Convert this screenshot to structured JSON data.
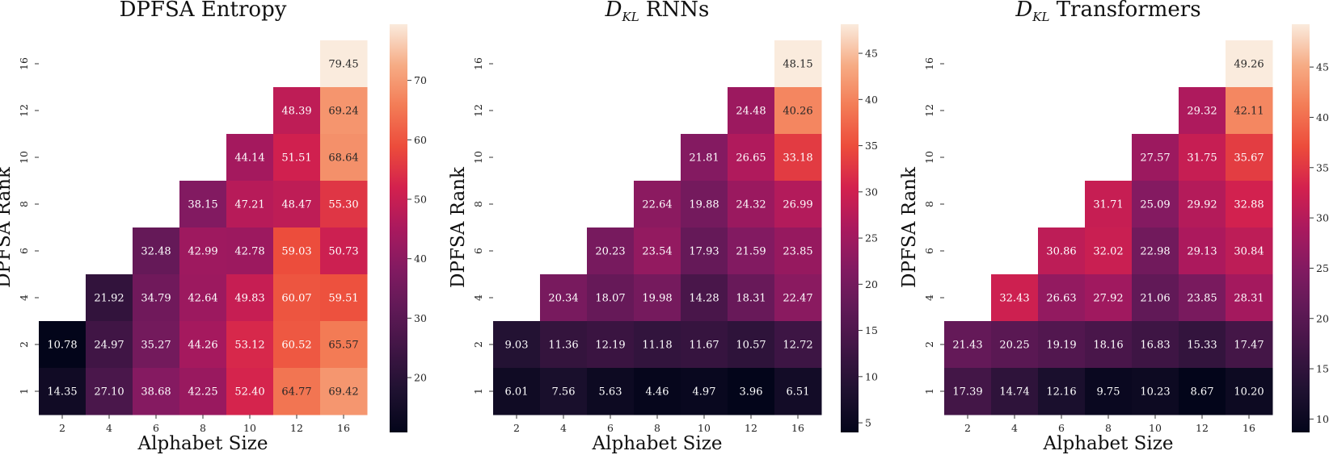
{
  "chart_data": [
    {
      "type": "heatmap",
      "title_main": "DPFSA Entropy",
      "title_sub": "",
      "xlabel": "Alphabet Size",
      "ylabel": "DPFSA Rank",
      "x_categories": [
        "2",
        "4",
        "6",
        "8",
        "10",
        "12",
        "16"
      ],
      "y_categories": [
        "16",
        "12",
        "10",
        "8",
        "6",
        "4",
        "2",
        "1"
      ],
      "values": [
        [
          null,
          null,
          null,
          null,
          null,
          null,
          79.45
        ],
        [
          null,
          null,
          null,
          null,
          null,
          48.39,
          69.24
        ],
        [
          null,
          null,
          null,
          null,
          44.14,
          51.51,
          68.64
        ],
        [
          null,
          null,
          null,
          38.15,
          47.21,
          48.47,
          55.3
        ],
        [
          null,
          null,
          32.48,
          42.99,
          42.78,
          59.03,
          50.73
        ],
        [
          null,
          21.92,
          34.79,
          42.64,
          49.83,
          60.07,
          59.51
        ],
        [
          10.78,
          24.97,
          35.27,
          44.26,
          53.12,
          60.52,
          65.57
        ],
        [
          14.35,
          27.1,
          38.68,
          42.25,
          52.4,
          64.77,
          69.42
        ]
      ],
      "labels": [
        [
          "",
          "",
          "",
          "",
          "",
          "",
          "79.45"
        ],
        [
          "",
          "",
          "",
          "",
          "",
          "48.39",
          "69.24"
        ],
        [
          "",
          "",
          "",
          "",
          "44.14",
          "51.51",
          "68.64"
        ],
        [
          "",
          "",
          "",
          "38.15",
          "47.21",
          "48.47",
          "55.30"
        ],
        [
          "",
          "",
          "32.48",
          "42.99",
          "42.78",
          "59.03",
          "50.73"
        ],
        [
          "",
          "21.92",
          "34.79",
          "42.64",
          "49.83",
          "60.07",
          "59.51"
        ],
        [
          "10.78",
          "24.97",
          "35.27",
          "44.26",
          "53.12",
          "60.52",
          "65.57"
        ],
        [
          "14.35",
          "27.10",
          "38.68",
          "42.25",
          "52.40",
          "64.77",
          "69.42"
        ]
      ],
      "vmin": 10.78,
      "vmax": 79.45,
      "colorbar_ticks": [
        20,
        30,
        40,
        50,
        60,
        70
      ],
      "colormap": "rocket"
    },
    {
      "type": "heatmap",
      "title_main": "D",
      "title_sub": "KL",
      "title_rest": " RNNs",
      "xlabel": "Alphabet Size",
      "ylabel": "DPFSA Rank",
      "x_categories": [
        "2",
        "4",
        "6",
        "8",
        "10",
        "12",
        "16"
      ],
      "y_categories": [
        "16",
        "12",
        "10",
        "8",
        "6",
        "4",
        "2",
        "1"
      ],
      "values": [
        [
          null,
          null,
          null,
          null,
          null,
          null,
          48.15
        ],
        [
          null,
          null,
          null,
          null,
          null,
          24.48,
          40.26
        ],
        [
          null,
          null,
          null,
          null,
          21.81,
          26.65,
          33.18
        ],
        [
          null,
          null,
          null,
          22.64,
          19.88,
          24.32,
          26.99
        ],
        [
          null,
          null,
          20.23,
          23.54,
          17.93,
          21.59,
          23.85
        ],
        [
          null,
          20.34,
          18.07,
          19.98,
          14.28,
          18.31,
          22.47
        ],
        [
          9.03,
          11.36,
          12.19,
          11.18,
          11.67,
          10.57,
          12.72
        ],
        [
          6.01,
          7.56,
          5.63,
          4.46,
          4.97,
          3.96,
          6.51
        ]
      ],
      "labels": [
        [
          "",
          "",
          "",
          "",
          "",
          "",
          "48.15"
        ],
        [
          "",
          "",
          "",
          "",
          "",
          "24.48",
          "40.26"
        ],
        [
          "",
          "",
          "",
          "",
          "21.81",
          "26.65",
          "33.18"
        ],
        [
          "",
          "",
          "",
          "22.64",
          "19.88",
          "24.32",
          "26.99"
        ],
        [
          "",
          "",
          "20.23",
          "23.54",
          "17.93",
          "21.59",
          "23.85"
        ],
        [
          "",
          "20.34",
          "18.07",
          "19.98",
          "14.28",
          "18.31",
          "22.47"
        ],
        [
          "9.03",
          "11.36",
          "12.19",
          "11.18",
          "11.67",
          "10.57",
          "12.72"
        ],
        [
          "6.01",
          "7.56",
          "5.63",
          "4.46",
          "4.97",
          "3.96",
          "6.51"
        ]
      ],
      "vmin": 3.96,
      "vmax": 48.15,
      "colorbar_ticks": [
        5,
        10,
        15,
        20,
        25,
        30,
        35,
        40,
        45
      ],
      "colormap": "rocket"
    },
    {
      "type": "heatmap",
      "title_main": "D",
      "title_sub": "KL",
      "title_rest": " Transformers",
      "xlabel": "Alphabet Size",
      "ylabel": "DPFSA Rank",
      "x_categories": [
        "2",
        "4",
        "6",
        "8",
        "10",
        "12",
        "16"
      ],
      "y_categories": [
        "16",
        "12",
        "10",
        "8",
        "6",
        "4",
        "2",
        "1"
      ],
      "values": [
        [
          null,
          null,
          null,
          null,
          null,
          null,
          49.26
        ],
        [
          null,
          null,
          null,
          null,
          null,
          29.32,
          42.11
        ],
        [
          null,
          null,
          null,
          null,
          27.57,
          31.75,
          35.67
        ],
        [
          null,
          null,
          null,
          31.71,
          25.09,
          29.92,
          32.88
        ],
        [
          null,
          null,
          30.86,
          32.02,
          22.98,
          29.13,
          30.84
        ],
        [
          null,
          32.43,
          26.63,
          27.92,
          21.06,
          23.85,
          28.31
        ],
        [
          21.43,
          20.25,
          19.19,
          18.16,
          16.83,
          15.33,
          17.47
        ],
        [
          17.39,
          14.74,
          12.16,
          9.75,
          10.23,
          8.67,
          10.2
        ]
      ],
      "labels": [
        [
          "",
          "",
          "",
          "",
          "",
          "",
          "49.26"
        ],
        [
          "",
          "",
          "",
          "",
          "",
          "29.32",
          "42.11"
        ],
        [
          "",
          "",
          "",
          "",
          "27.57",
          "31.75",
          "35.67"
        ],
        [
          "",
          "",
          "",
          "31.71",
          "25.09",
          "29.92",
          "32.88"
        ],
        [
          "",
          "",
          "30.86",
          "32.02",
          "22.98",
          "29.13",
          "30.84"
        ],
        [
          "",
          "32.43",
          "26.63",
          "27.92",
          "21.06",
          "23.85",
          "28.31"
        ],
        [
          "21.43",
          "20.25",
          "19.19",
          "18.16",
          "16.83",
          "15.33",
          "17.47"
        ],
        [
          "17.39",
          "14.74",
          "12.16",
          "9.75",
          "10.23",
          "8.67",
          "10.20"
        ]
      ],
      "vmin": 8.67,
      "vmax": 49.26,
      "colorbar_ticks": [
        10,
        15,
        20,
        25,
        30,
        35,
        40,
        45
      ],
      "colormap": "rocket"
    }
  ]
}
